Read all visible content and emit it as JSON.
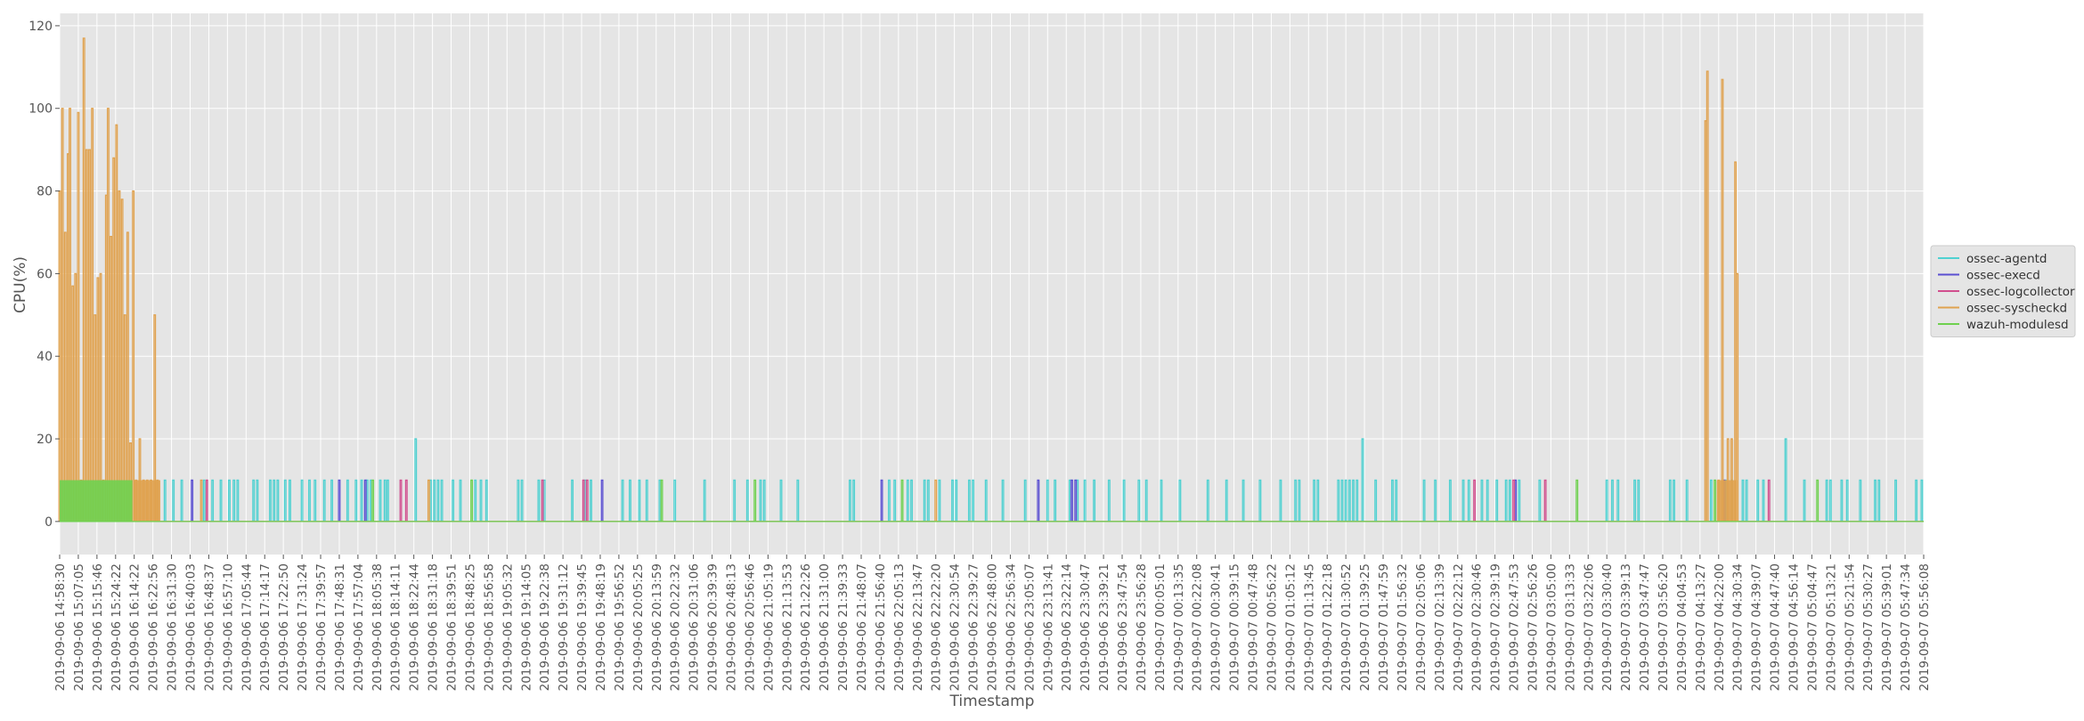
{
  "chart_data": {
    "type": "line",
    "title": "",
    "xlabel": "Timestamp",
    "ylabel": "CPU(%)",
    "ylim": [
      -8,
      123
    ],
    "yticks": [
      0,
      20,
      40,
      60,
      80,
      100,
      120
    ],
    "grid": true,
    "legend_position": "right",
    "x_tick_labels": [
      "2019-09-06 14:58:30",
      "2019-09-06 15:07:05",
      "2019-09-06 15:15:46",
      "2019-09-06 15:24:22",
      "2019-09-06 16:14:22",
      "2019-09-06 16:22:56",
      "2019-09-06 16:31:30",
      "2019-09-06 16:40:03",
      "2019-09-06 16:48:37",
      "2019-09-06 16:57:10",
      "2019-09-06 17:05:44",
      "2019-09-06 17:14:17",
      "2019-09-06 17:22:50",
      "2019-09-06 17:31:24",
      "2019-09-06 17:39:57",
      "2019-09-06 17:48:31",
      "2019-09-06 17:57:04",
      "2019-09-06 18:05:38",
      "2019-09-06 18:14:11",
      "2019-09-06 18:22:44",
      "2019-09-06 18:31:18",
      "2019-09-06 18:39:51",
      "2019-09-06 18:48:25",
      "2019-09-06 18:56:58",
      "2019-09-06 19:05:32",
      "2019-09-06 19:14:05",
      "2019-09-06 19:22:38",
      "2019-09-06 19:31:12",
      "2019-09-06 19:39:45",
      "2019-09-06 19:48:19",
      "2019-09-06 19:56:52",
      "2019-09-06 20:05:25",
      "2019-09-06 20:13:59",
      "2019-09-06 20:22:32",
      "2019-09-06 20:31:06",
      "2019-09-06 20:39:39",
      "2019-09-06 20:48:13",
      "2019-09-06 20:56:46",
      "2019-09-06 21:05:19",
      "2019-09-06 21:13:53",
      "2019-09-06 21:22:26",
      "2019-09-06 21:31:00",
      "2019-09-06 21:39:33",
      "2019-09-06 21:48:07",
      "2019-09-06 21:56:40",
      "2019-09-06 22:05:13",
      "2019-09-06 22:13:47",
      "2019-09-06 22:22:20",
      "2019-09-06 22:30:54",
      "2019-09-06 22:39:27",
      "2019-09-06 22:48:00",
      "2019-09-06 22:56:34",
      "2019-09-06 23:05:07",
      "2019-09-06 23:13:41",
      "2019-09-06 23:22:14",
      "2019-09-06 23:30:47",
      "2019-09-06 23:39:21",
      "2019-09-06 23:47:54",
      "2019-09-06 23:56:28",
      "2019-09-07 00:05:01",
      "2019-09-07 00:13:35",
      "2019-09-07 00:22:08",
      "2019-09-07 00:30:41",
      "2019-09-07 00:39:15",
      "2019-09-07 00:47:48",
      "2019-09-07 00:56:22",
      "2019-09-07 01:05:12",
      "2019-09-07 01:13:45",
      "2019-09-07 01:22:18",
      "2019-09-07 01:30:52",
      "2019-09-07 01:39:25",
      "2019-09-07 01:47:59",
      "2019-09-07 01:56:32",
      "2019-09-07 02:05:06",
      "2019-09-07 02:13:39",
      "2019-09-07 02:22:12",
      "2019-09-07 02:30:46",
      "2019-09-07 02:39:19",
      "2019-09-07 02:47:53",
      "2019-09-07 02:56:26",
      "2019-09-07 03:05:00",
      "2019-09-07 03:13:33",
      "2019-09-07 03:22:06",
      "2019-09-07 03:30:40",
      "2019-09-07 03:39:13",
      "2019-09-07 03:47:47",
      "2019-09-07 03:56:20",
      "2019-09-07 04:04:53",
      "2019-09-07 04:13:27",
      "2019-09-07 04:22:00",
      "2019-09-07 04:30:34",
      "2019-09-07 04:39:07",
      "2019-09-07 04:47:40",
      "2019-09-07 04:56:14",
      "2019-09-07 05:04:47",
      "2019-09-07 05:13:21",
      "2019-09-07 05:21:54",
      "2019-09-07 05:30:27",
      "2019-09-07 05:39:01",
      "2019-09-07 05:47:34",
      "2019-09-07 05:56:08"
    ],
    "series": [
      {
        "name": "ossec-agentd",
        "color": "#4fd1d1",
        "base": 0,
        "spikes": [
          {
            "x": 5.65,
            "y": 10
          },
          {
            "x": 6.1,
            "y": 10
          },
          {
            "x": 6.55,
            "y": 10
          },
          {
            "x": 7.75,
            "y": 10
          },
          {
            "x": 8.2,
            "y": 10
          },
          {
            "x": 8.65,
            "y": 10
          },
          {
            "x": 9.1,
            "y": 10
          },
          {
            "x": 9.35,
            "y": 10
          },
          {
            "x": 9.55,
            "y": 10
          },
          {
            "x": 10.4,
            "y": 10
          },
          {
            "x": 10.6,
            "y": 10
          },
          {
            "x": 11.3,
            "y": 10
          },
          {
            "x": 11.5,
            "y": 10
          },
          {
            "x": 11.7,
            "y": 10
          },
          {
            "x": 12.1,
            "y": 10
          },
          {
            "x": 12.35,
            "y": 10
          },
          {
            "x": 13.0,
            "y": 10
          },
          {
            "x": 13.4,
            "y": 10
          },
          {
            "x": 13.7,
            "y": 10
          },
          {
            "x": 14.2,
            "y": 10
          },
          {
            "x": 14.6,
            "y": 10
          },
          {
            "x": 15.45,
            "y": 10
          },
          {
            "x": 15.9,
            "y": 10
          },
          {
            "x": 16.2,
            "y": 10
          },
          {
            "x": 16.5,
            "y": 10
          },
          {
            "x": 16.7,
            "y": 10
          },
          {
            "x": 17.2,
            "y": 10
          },
          {
            "x": 17.45,
            "y": 10
          },
          {
            "x": 17.6,
            "y": 10
          },
          {
            "x": 19.1,
            "y": 20
          },
          {
            "x": 19.9,
            "y": 10
          },
          {
            "x": 20.1,
            "y": 10
          },
          {
            "x": 20.3,
            "y": 10
          },
          {
            "x": 20.5,
            "y": 10
          },
          {
            "x": 21.1,
            "y": 10
          },
          {
            "x": 21.5,
            "y": 10
          },
          {
            "x": 22.3,
            "y": 10
          },
          {
            "x": 22.6,
            "y": 10
          },
          {
            "x": 22.9,
            "y": 10
          },
          {
            "x": 24.6,
            "y": 10
          },
          {
            "x": 24.8,
            "y": 10
          },
          {
            "x": 25.7,
            "y": 10
          },
          {
            "x": 26.0,
            "y": 10
          },
          {
            "x": 27.5,
            "y": 10
          },
          {
            "x": 28.2,
            "y": 10
          },
          {
            "x": 28.5,
            "y": 10
          },
          {
            "x": 30.2,
            "y": 10
          },
          {
            "x": 30.6,
            "y": 10
          },
          {
            "x": 31.1,
            "y": 10
          },
          {
            "x": 31.5,
            "y": 10
          },
          {
            "x": 32.2,
            "y": 10
          },
          {
            "x": 33.0,
            "y": 10
          },
          {
            "x": 34.6,
            "y": 10
          },
          {
            "x": 36.2,
            "y": 10
          },
          {
            "x": 36.9,
            "y": 10
          },
          {
            "x": 37.6,
            "y": 10
          },
          {
            "x": 37.8,
            "y": 10
          },
          {
            "x": 38.7,
            "y": 10
          },
          {
            "x": 39.6,
            "y": 10
          },
          {
            "x": 42.4,
            "y": 10
          },
          {
            "x": 42.6,
            "y": 10
          },
          {
            "x": 44.5,
            "y": 10
          },
          {
            "x": 44.8,
            "y": 10
          },
          {
            "x": 45.5,
            "y": 10
          },
          {
            "x": 45.7,
            "y": 10
          },
          {
            "x": 46.4,
            "y": 10
          },
          {
            "x": 46.6,
            "y": 10
          },
          {
            "x": 47.2,
            "y": 10
          },
          {
            "x": 47.9,
            "y": 10
          },
          {
            "x": 48.1,
            "y": 10
          },
          {
            "x": 48.8,
            "y": 10
          },
          {
            "x": 49.0,
            "y": 10
          },
          {
            "x": 49.7,
            "y": 10
          },
          {
            "x": 50.6,
            "y": 10
          },
          {
            "x": 51.8,
            "y": 10
          },
          {
            "x": 53.0,
            "y": 10
          },
          {
            "x": 53.4,
            "y": 10
          },
          {
            "x": 54.2,
            "y": 10
          },
          {
            "x": 54.6,
            "y": 10
          },
          {
            "x": 55.0,
            "y": 10
          },
          {
            "x": 55.5,
            "y": 10
          },
          {
            "x": 56.3,
            "y": 10
          },
          {
            "x": 57.1,
            "y": 10
          },
          {
            "x": 57.9,
            "y": 10
          },
          {
            "x": 58.3,
            "y": 10
          },
          {
            "x": 59.1,
            "y": 10
          },
          {
            "x": 60.1,
            "y": 10
          },
          {
            "x": 61.6,
            "y": 10
          },
          {
            "x": 62.6,
            "y": 10
          },
          {
            "x": 63.5,
            "y": 10
          },
          {
            "x": 64.4,
            "y": 10
          },
          {
            "x": 65.5,
            "y": 10
          },
          {
            "x": 66.3,
            "y": 10
          },
          {
            "x": 66.5,
            "y": 10
          },
          {
            "x": 67.3,
            "y": 10
          },
          {
            "x": 67.5,
            "y": 10
          },
          {
            "x": 68.6,
            "y": 10
          },
          {
            "x": 68.8,
            "y": 10
          },
          {
            "x": 69.0,
            "y": 10
          },
          {
            "x": 69.2,
            "y": 10
          },
          {
            "x": 69.4,
            "y": 10
          },
          {
            "x": 69.6,
            "y": 10
          },
          {
            "x": 69.9,
            "y": 20
          },
          {
            "x": 70.6,
            "y": 10
          },
          {
            "x": 71.5,
            "y": 10
          },
          {
            "x": 71.7,
            "y": 10
          },
          {
            "x": 73.2,
            "y": 10
          },
          {
            "x": 73.8,
            "y": 10
          },
          {
            "x": 74.6,
            "y": 10
          },
          {
            "x": 75.3,
            "y": 10
          },
          {
            "x": 75.6,
            "y": 10
          },
          {
            "x": 76.3,
            "y": 10
          },
          {
            "x": 76.6,
            "y": 10
          },
          {
            "x": 77.1,
            "y": 10
          },
          {
            "x": 77.6,
            "y": 10
          },
          {
            "x": 77.8,
            "y": 10
          },
          {
            "x": 78.3,
            "y": 10
          },
          {
            "x": 79.4,
            "y": 10
          },
          {
            "x": 83.0,
            "y": 10
          },
          {
            "x": 83.3,
            "y": 10
          },
          {
            "x": 83.6,
            "y": 10
          },
          {
            "x": 84.5,
            "y": 10
          },
          {
            "x": 84.7,
            "y": 10
          },
          {
            "x": 86.4,
            "y": 10
          },
          {
            "x": 86.6,
            "y": 10
          },
          {
            "x": 87.3,
            "y": 10
          },
          {
            "x": 88.6,
            "y": 10
          },
          {
            "x": 89.4,
            "y": 10
          },
          {
            "x": 89.7,
            "y": 10
          },
          {
            "x": 90.3,
            "y": 10
          },
          {
            "x": 90.5,
            "y": 10
          },
          {
            "x": 91.1,
            "y": 10
          },
          {
            "x": 91.4,
            "y": 10
          },
          {
            "x": 92.6,
            "y": 20
          },
          {
            "x": 93.6,
            "y": 10
          },
          {
            "x": 94.8,
            "y": 10
          },
          {
            "x": 95.0,
            "y": 10
          },
          {
            "x": 95.6,
            "y": 10
          },
          {
            "x": 95.9,
            "y": 10
          },
          {
            "x": 96.6,
            "y": 10
          },
          {
            "x": 97.4,
            "y": 10
          },
          {
            "x": 97.6,
            "y": 10
          },
          {
            "x": 98.5,
            "y": 10
          },
          {
            "x": 99.6,
            "y": 10
          },
          {
            "x": 99.9,
            "y": 10
          }
        ]
      },
      {
        "name": "ossec-execd",
        "color": "#5a4fd1",
        "base": 0,
        "spikes": [
          {
            "x": 7.1,
            "y": 10
          },
          {
            "x": 15.0,
            "y": 10
          },
          {
            "x": 16.4,
            "y": 10
          },
          {
            "x": 29.1,
            "y": 10
          },
          {
            "x": 44.1,
            "y": 10
          },
          {
            "x": 52.5,
            "y": 10
          },
          {
            "x": 54.3,
            "y": 10
          },
          {
            "x": 54.5,
            "y": 10
          },
          {
            "x": 78.1,
            "y": 10
          },
          {
            "x": 89.3,
            "y": 10
          }
        ]
      },
      {
        "name": "ossec-logcollector",
        "color": "#d14f8e",
        "base": 0,
        "spikes": [
          {
            "x": 7.9,
            "y": 10
          },
          {
            "x": 18.3,
            "y": 10
          },
          {
            "x": 18.6,
            "y": 10
          },
          {
            "x": 28.1,
            "y": 10
          },
          {
            "x": 28.3,
            "y": 10
          },
          {
            "x": 25.9,
            "y": 10
          },
          {
            "x": 75.9,
            "y": 10
          },
          {
            "x": 78.0,
            "y": 10
          },
          {
            "x": 79.7,
            "y": 10
          },
          {
            "x": 91.7,
            "y": 10
          }
        ]
      },
      {
        "name": "ossec-syscheckd",
        "color": "#e0a24f",
        "base": 0,
        "spikes": [
          {
            "x": 0.0,
            "y": 80
          },
          {
            "x": 0.15,
            "y": 100
          },
          {
            "x": 0.3,
            "y": 70
          },
          {
            "x": 0.45,
            "y": 89
          },
          {
            "x": 0.55,
            "y": 100
          },
          {
            "x": 0.7,
            "y": 57
          },
          {
            "x": 0.85,
            "y": 60
          },
          {
            "x": 1.0,
            "y": 99
          },
          {
            "x": 1.15,
            "y": 10
          },
          {
            "x": 1.3,
            "y": 117
          },
          {
            "x": 1.45,
            "y": 90
          },
          {
            "x": 1.6,
            "y": 90
          },
          {
            "x": 1.75,
            "y": 100
          },
          {
            "x": 1.9,
            "y": 50
          },
          {
            "x": 2.05,
            "y": 59
          },
          {
            "x": 2.2,
            "y": 60
          },
          {
            "x": 2.35,
            "y": 10
          },
          {
            "x": 2.5,
            "y": 79
          },
          {
            "x": 2.6,
            "y": 100
          },
          {
            "x": 2.75,
            "y": 69
          },
          {
            "x": 2.9,
            "y": 88
          },
          {
            "x": 3.05,
            "y": 96
          },
          {
            "x": 3.2,
            "y": 80
          },
          {
            "x": 3.35,
            "y": 78
          },
          {
            "x": 3.5,
            "y": 50
          },
          {
            "x": 3.65,
            "y": 70
          },
          {
            "x": 3.8,
            "y": 19
          },
          {
            "x": 3.95,
            "y": 80
          },
          {
            "x": 4.1,
            "y": 10
          },
          {
            "x": 4.3,
            "y": 20
          },
          {
            "x": 4.5,
            "y": 10
          },
          {
            "x": 4.7,
            "y": 10
          },
          {
            "x": 4.9,
            "y": 10
          },
          {
            "x": 5.1,
            "y": 50
          },
          {
            "x": 5.25,
            "y": 10
          },
          {
            "x": 7.6,
            "y": 10
          },
          {
            "x": 19.8,
            "y": 10
          },
          {
            "x": 47.0,
            "y": 10
          },
          {
            "x": 88.3,
            "y": 97
          },
          {
            "x": 88.4,
            "y": 109
          },
          {
            "x": 89.0,
            "y": 10
          },
          {
            "x": 89.2,
            "y": 107
          },
          {
            "x": 89.5,
            "y": 20
          },
          {
            "x": 89.7,
            "y": 20
          },
          {
            "x": 89.9,
            "y": 87
          },
          {
            "x": 90.0,
            "y": 60
          }
        ],
        "bands": [
          {
            "from": 4.0,
            "to": 5.4,
            "y": 10
          },
          {
            "from": 88.9,
            "to": 90.0,
            "y": 10
          }
        ]
      },
      {
        "name": "wazuh-modulesd",
        "color": "#6fd14f",
        "base": 0,
        "spikes": [
          {
            "x": 16.8,
            "y": 10
          },
          {
            "x": 22.1,
            "y": 10
          },
          {
            "x": 32.3,
            "y": 10
          },
          {
            "x": 37.3,
            "y": 10
          },
          {
            "x": 45.2,
            "y": 10
          },
          {
            "x": 81.4,
            "y": 10
          },
          {
            "x": 88.8,
            "y": 10
          },
          {
            "x": 94.3,
            "y": 10
          }
        ],
        "bands": [
          {
            "from": 0.0,
            "to": 3.9,
            "y": 10
          }
        ]
      }
    ]
  }
}
